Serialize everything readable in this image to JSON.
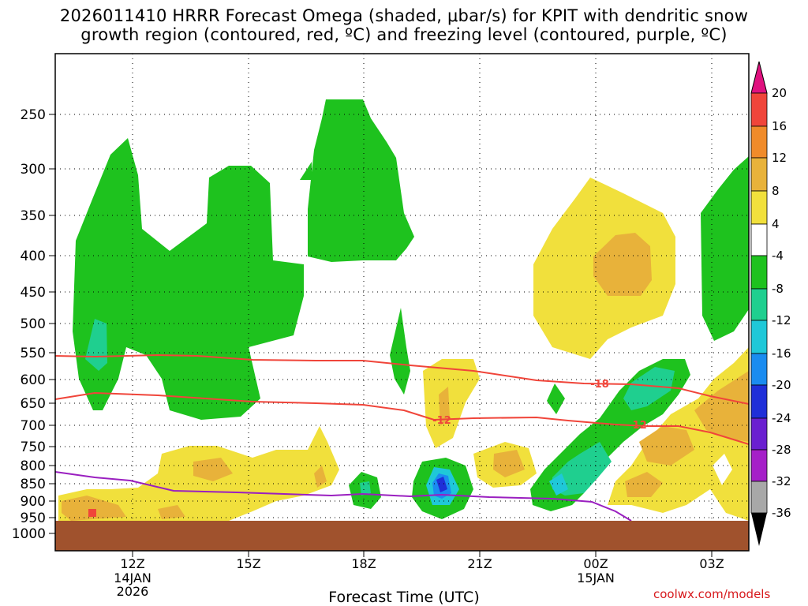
{
  "title": {
    "line1": "2026011410 HRRR Forecast Omega (shaded, μbar/s) for KPIT with dendritic snow",
    "line2": "growth region (contoured, red, ºC) and freezing level (contoured, purple, ºC)"
  },
  "footer": {
    "url": "coolwx.com/models"
  },
  "chart_data": {
    "type": "contour",
    "xlabel": "Forecast Time (UTC)",
    "ylabel": "",
    "y_ticks": [
      250,
      300,
      350,
      400,
      450,
      500,
      550,
      600,
      650,
      700,
      750,
      800,
      850,
      900,
      950,
      1000
    ],
    "y_tick_labels": [
      "250",
      "300",
      "350",
      "400",
      "450",
      "500",
      "550",
      "600",
      "650",
      "700",
      "750",
      "800",
      "850",
      "900",
      "950",
      "1000"
    ],
    "x_ticks": [
      {
        "label": "12Z",
        "sub1": "14JAN",
        "sub2": "2026"
      },
      {
        "label": "15Z",
        "sub1": "",
        "sub2": ""
      },
      {
        "label": "18Z",
        "sub1": "",
        "sub2": ""
      },
      {
        "label": "21Z",
        "sub1": "",
        "sub2": ""
      },
      {
        "label": "00Z",
        "sub1": "15JAN",
        "sub2": ""
      },
      {
        "label": "03Z",
        "sub1": "",
        "sub2": ""
      }
    ],
    "grid": true,
    "colorbar": {
      "levels": [
        "20",
        "16",
        "12",
        "8",
        "4",
        "-4",
        "-8",
        "-12",
        "-16",
        "-20",
        "-24",
        "-28",
        "-32",
        "-36"
      ],
      "colors": [
        "#e0117f",
        "#f0453a",
        "#f08b2a",
        "#e8b23a",
        "#f1e03c",
        "#ffffff",
        "#1ec21e",
        "#1fcf8f",
        "#1fc8d8",
        "#1a8cf0",
        "#1f2fd8",
        "#6a1fd0",
        "#a51fc8",
        "#a8a8a8",
        "#000000"
      ]
    },
    "contour_labels": [
      "-18",
      "-12",
      "-12",
      "-18"
    ],
    "colors": {
      "dgz_contour": "#f0453a",
      "freezing_contour": "#9a1fc0",
      "ground": "#a0522d",
      "green": "#1ec21e",
      "yellow": "#f1e03c",
      "orange": "#e8b23a"
    }
  }
}
